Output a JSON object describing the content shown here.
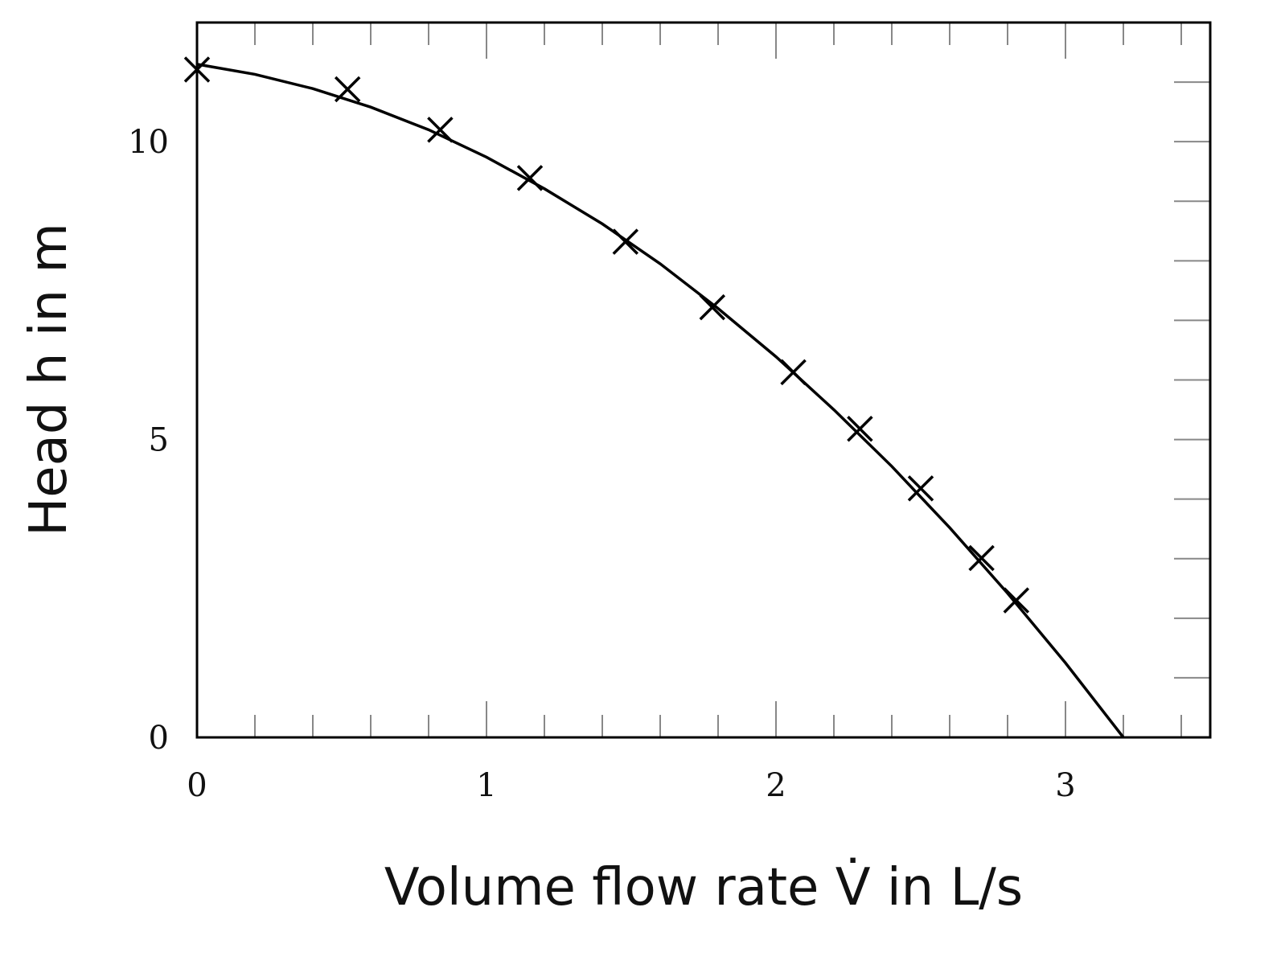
{
  "chart_data": {
    "type": "scatter",
    "x_label": "Volume flow rate V̇ in L/s",
    "y_label": "Head h in m",
    "xlim": [
      0,
      3.5
    ],
    "ylim": [
      0,
      12
    ],
    "xticks": [
      0,
      1,
      2,
      3
    ],
    "yticks": [
      0,
      5,
      10
    ],
    "xminorticks": [
      0.2,
      0.4,
      0.6,
      0.8,
      1.2,
      1.4,
      1.6,
      1.8,
      2.2,
      2.4,
      2.6,
      2.8,
      3.2,
      3.4
    ],
    "yminorticks": [
      1,
      2,
      3,
      4,
      6,
      7,
      8,
      9,
      11
    ],
    "series": [
      {
        "type": "scatter",
        "marker": "x",
        "color": "#000000",
        "x": [
          0,
          0.52,
          0.84,
          1.15,
          1.48,
          1.78,
          2.06,
          2.29,
          2.5,
          2.71,
          2.83
        ],
        "values": [
          11.21,
          10.88,
          10.2,
          9.39,
          8.32,
          7.22,
          6.13,
          5.18,
          4.18,
          3.01,
          2.3
        ]
      },
      {
        "type": "line",
        "color": "#000000",
        "x": [
          0,
          0.2,
          0.4,
          0.6,
          0.8,
          1.0,
          1.2,
          1.4,
          1.6,
          1.8,
          2.0,
          2.2,
          2.4,
          2.6,
          2.8,
          3.0,
          3.2
        ],
        "values": [
          11.3,
          11.13,
          10.89,
          10.58,
          10.2,
          9.74,
          9.21,
          8.62,
          7.95,
          7.2,
          6.39,
          5.5,
          4.55,
          3.52,
          2.42,
          1.25,
          0
        ]
      }
    ]
  }
}
